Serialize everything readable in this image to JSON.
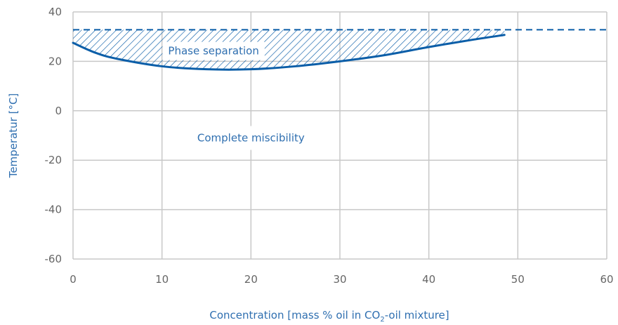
{
  "chart_data": {
    "type": "line",
    "title": "",
    "xlabel": "Concentration [mass % oil in CO",
    "xlabel_sub": "2",
    "xlabel_suffix": "-oil mixture]",
    "ylabel": "Temperatur [°C]",
    "xlim": [
      0,
      60
    ],
    "ylim": [
      -60,
      40
    ],
    "x_ticks": [
      0,
      10,
      20,
      30,
      40,
      50,
      60
    ],
    "y_ticks": [
      -60,
      -40,
      -20,
      0,
      20,
      40
    ],
    "grid": true,
    "series": [
      {
        "style": "solid",
        "points": [
          [
            0,
            27.5
          ],
          [
            2.5,
            23.5
          ],
          [
            5,
            21
          ],
          [
            10,
            18
          ],
          [
            15,
            16.8
          ],
          [
            20,
            16.8
          ],
          [
            25,
            18
          ],
          [
            30,
            20
          ],
          [
            35,
            22.5
          ],
          [
            40,
            25.8
          ],
          [
            45,
            28.8
          ],
          [
            48.5,
            30.7
          ]
        ]
      },
      {
        "style": "dashed",
        "points": [
          [
            0,
            32.8
          ],
          [
            60,
            32.8
          ]
        ]
      }
    ],
    "hatched_region": "between dashed line and solid curve",
    "annotations": [
      {
        "text": "Phase separation",
        "x": 15.8,
        "y": 24.2
      },
      {
        "text": "Complete miscibility",
        "x": 20,
        "y": -11
      }
    ],
    "colors": {
      "curve": "#0b5ea8",
      "text": "#2f6fb0",
      "grid": "#c8c8c8",
      "tick": "#666666"
    }
  }
}
